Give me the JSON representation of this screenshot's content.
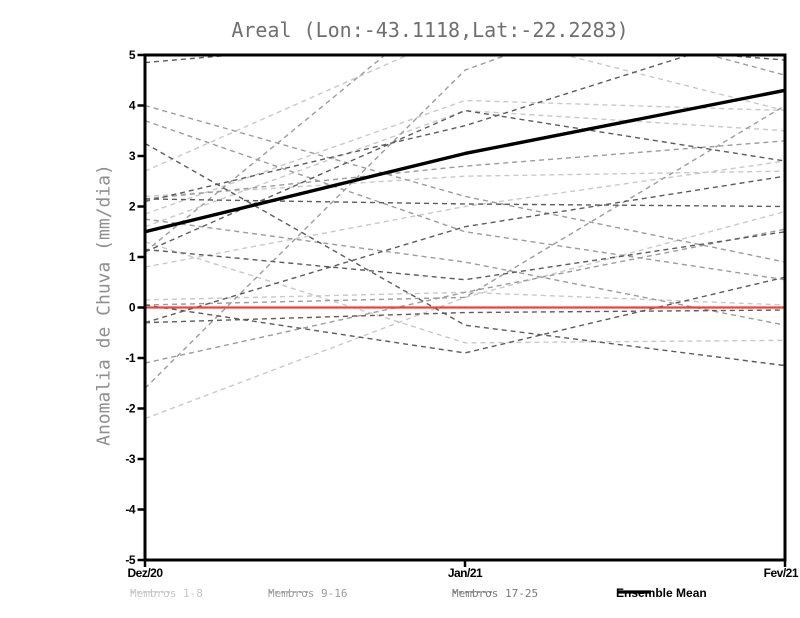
{
  "chart_data": {
    "type": "line",
    "title": "Areal (Lon:-43.1118,Lat:-22.2283)",
    "ylabel": "Anomalia de Chuva (mm/dia)",
    "xlabel": "",
    "ylim": [
      -5,
      5
    ],
    "yticks": [
      5,
      4,
      3,
      2,
      1,
      0,
      -1,
      -2,
      -3,
      -4,
      -5
    ],
    "x_categories": [
      "Dez/20",
      "Jan/21",
      "Fev/21"
    ],
    "grid": false,
    "zero_line": {
      "value": 0,
      "color": "#f04040"
    },
    "ensemble_mean": {
      "name": "Ensemble Mean",
      "color": "#000000",
      "values": [
        1.5,
        3.05,
        4.3
      ]
    },
    "member_groups": [
      {
        "name": "Membros 1-8",
        "color": "#c9c9c9",
        "lines": [
          [
            2.7,
            5.5,
            3.9
          ],
          [
            1.85,
            4.1,
            3.9
          ],
          [
            1.6,
            3.9,
            3.5
          ],
          [
            0.8,
            2.0,
            2.9
          ],
          [
            -2.2,
            0.2,
            1.9
          ],
          [
            1.3,
            -0.7,
            -0.65
          ],
          [
            2.2,
            2.6,
            2.7
          ],
          [
            0.15,
            0.3,
            0.05
          ]
        ]
      },
      {
        "name": "Membros 9-16",
        "color": "#9c9c9c",
        "lines": [
          [
            -1.6,
            4.7,
            7.0
          ],
          [
            4.0,
            2.2,
            0.9
          ],
          [
            3.7,
            1.5,
            0.55
          ],
          [
            1.1,
            6.3,
            4.6
          ],
          [
            2.15,
            2.8,
            3.3
          ],
          [
            -1.1,
            0.3,
            1.55
          ],
          [
            0.05,
            0.2,
            4.0
          ],
          [
            1.75,
            0.9,
            -0.35
          ]
        ]
      },
      {
        "name": "Membros 17-25",
        "color": "#5c5c5c",
        "lines": [
          [
            4.85,
            5.4,
            4.9
          ],
          [
            3.25,
            -0.35,
            -1.15
          ],
          [
            2.15,
            2.05,
            2.0
          ],
          [
            2.1,
            3.6,
            5.6
          ],
          [
            1.15,
            0.55,
            1.5
          ],
          [
            1.1,
            3.9,
            2.9
          ],
          [
            0.05,
            -0.9,
            0.6
          ],
          [
            -0.3,
            -0.1,
            -0.05
          ],
          [
            -0.3,
            1.6,
            2.6
          ]
        ]
      }
    ],
    "legend": {
      "position": "bottom",
      "items": [
        {
          "label": "Membros 1-8",
          "color": "#c6c6c6",
          "line_style": "dashed"
        },
        {
          "label": "Membros 9-16",
          "color": "#9c9c9c",
          "line_style": "dashed"
        },
        {
          "label": "Membros 17-25",
          "color": "#7a7a7a",
          "line_style": "dashed"
        },
        {
          "label": "Ensemble Mean",
          "color": "#000000",
          "line_style": "solid"
        }
      ]
    }
  }
}
